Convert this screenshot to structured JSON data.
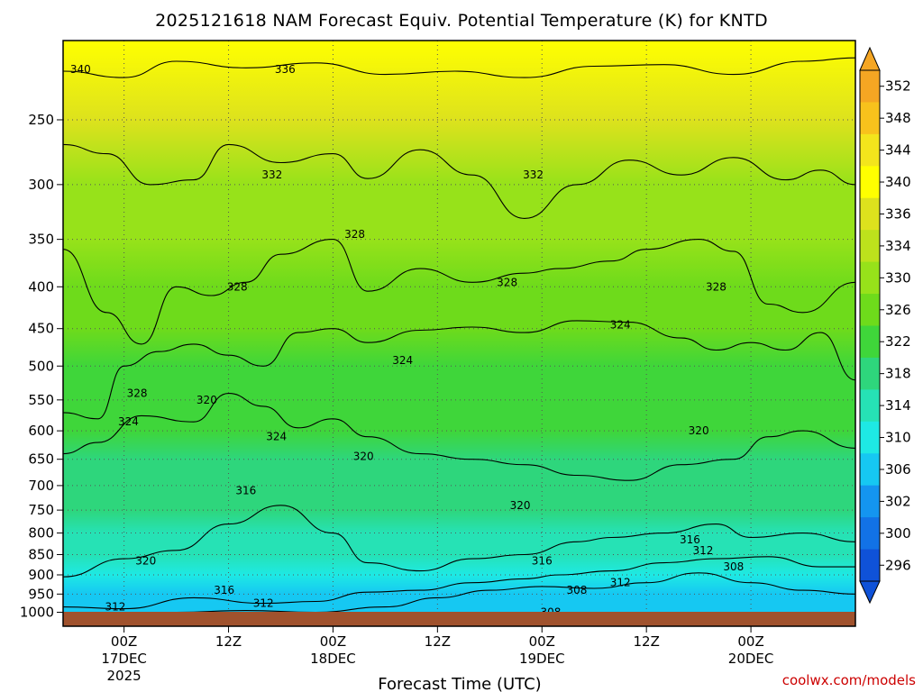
{
  "title": "2025121618 NAM Forecast Equiv. Potential Temperature (K) for KNTD",
  "credit": "coolwx.com/models",
  "colors": {
    "ground": "#a0522d",
    "credit": "#cc0000",
    "grid": "#555555"
  },
  "chart_data": {
    "type": "heatmap",
    "title": "2025121618 NAM Forecast Equiv. Potential Temperature (K) for KNTD",
    "xlabel": "Forecast Time (UTC)",
    "ylabel": "",
    "xlim_hours": [
      -7,
      84
    ],
    "ylim_hpa": [
      200,
      1040
    ],
    "y_scale": "log-pressure (inverted)",
    "grid": true,
    "x_ticks": [
      {
        "hour": 0,
        "time": "00Z",
        "date": "17DEC",
        "year": "2025"
      },
      {
        "hour": 12,
        "time": "12Z",
        "date": "",
        "year": ""
      },
      {
        "hour": 24,
        "time": "00Z",
        "date": "18DEC",
        "year": ""
      },
      {
        "hour": 36,
        "time": "12Z",
        "date": "",
        "year": ""
      },
      {
        "hour": 48,
        "time": "00Z",
        "date": "19DEC",
        "year": ""
      },
      {
        "hour": 60,
        "time": "12Z",
        "date": "",
        "year": ""
      },
      {
        "hour": 72,
        "time": "00Z",
        "date": "20DEC",
        "year": ""
      }
    ],
    "y_ticks": [
      250,
      300,
      350,
      400,
      450,
      500,
      550,
      600,
      650,
      700,
      750,
      800,
      850,
      900,
      950,
      1000
    ],
    "colorbar": {
      "units": "K",
      "labels": [
        352,
        348,
        344,
        340,
        336,
        334,
        330,
        326,
        322,
        318,
        314,
        310,
        306,
        302,
        300,
        296
      ],
      "colors": [
        "#f5a623",
        "#f8c21c",
        "#f3e51c",
        "#ffff00",
        "#dde21d",
        "#bde21c",
        "#97e21a",
        "#6edb1b",
        "#3fd63a",
        "#2ed67c",
        "#26e2b5",
        "#1ee9e4",
        "#16c8f2",
        "#1495f0",
        "#1272e6",
        "#0f52d8"
      ]
    },
    "field_stops": [
      {
        "pressure": 200,
        "value": 342
      },
      {
        "pressure": 250,
        "value": 336
      },
      {
        "pressure": 300,
        "value": 333
      },
      {
        "pressure": 350,
        "value": 330
      },
      {
        "pressure": 400,
        "value": 328
      },
      {
        "pressure": 450,
        "value": 326
      },
      {
        "pressure": 500,
        "value": 324
      },
      {
        "pressure": 550,
        "value": 323
      },
      {
        "pressure": 600,
        "value": 322
      },
      {
        "pressure": 650,
        "value": 321
      },
      {
        "pressure": 700,
        "value": 319
      },
      {
        "pressure": 750,
        "value": 318
      },
      {
        "pressure": 800,
        "value": 317
      },
      {
        "pressure": 850,
        "value": 315
      },
      {
        "pressure": 900,
        "value": 312
      },
      {
        "pressure": 950,
        "value": 309
      },
      {
        "pressure": 1000,
        "value": 306
      }
    ],
    "contours": [
      {
        "level": 336,
        "points": [
          [
            -7,
            218
          ],
          [
            0,
            222
          ],
          [
            6,
            212
          ],
          [
            14,
            216
          ],
          [
            22,
            213
          ],
          [
            30,
            220
          ],
          [
            38,
            218
          ],
          [
            46,
            222
          ],
          [
            54,
            215
          ],
          [
            62,
            214
          ],
          [
            70,
            220
          ],
          [
            78,
            212
          ],
          [
            84,
            210
          ]
        ]
      },
      {
        "level": 332,
        "points": [
          [
            -7,
            268
          ],
          [
            -2,
            275
          ],
          [
            3,
            300
          ],
          [
            8,
            296
          ],
          [
            12,
            268
          ],
          [
            18,
            282
          ],
          [
            24,
            275
          ],
          [
            28,
            295
          ],
          [
            34,
            272
          ],
          [
            40,
            292
          ],
          [
            46,
            330
          ],
          [
            52,
            300
          ],
          [
            58,
            280
          ],
          [
            64,
            292
          ],
          [
            70,
            278
          ],
          [
            76,
            296
          ],
          [
            80,
            288
          ],
          [
            84,
            300
          ]
        ]
      },
      {
        "level": 328,
        "points": [
          [
            -7,
            360
          ],
          [
            -2,
            430
          ],
          [
            2,
            470
          ],
          [
            6,
            400
          ],
          [
            10,
            410
          ],
          [
            14,
            395
          ],
          [
            18,
            365
          ],
          [
            24,
            350
          ],
          [
            28,
            405
          ],
          [
            34,
            380
          ],
          [
            40,
            395
          ],
          [
            46,
            385
          ],
          [
            50,
            380
          ],
          [
            56,
            372
          ],
          [
            60,
            360
          ],
          [
            66,
            350
          ],
          [
            70,
            362
          ],
          [
            74,
            420
          ],
          [
            78,
            430
          ],
          [
            84,
            395
          ]
        ]
      },
      {
        "level": 324,
        "points": [
          [
            -7,
            570
          ],
          [
            -3,
            580
          ],
          [
            0,
            500
          ],
          [
            4,
            480
          ],
          [
            8,
            470
          ],
          [
            12,
            485
          ],
          [
            16,
            500
          ],
          [
            20,
            455
          ],
          [
            24,
            450
          ],
          [
            28,
            468
          ],
          [
            34,
            452
          ],
          [
            40,
            448
          ],
          [
            46,
            455
          ],
          [
            52,
            440
          ],
          [
            58,
            442
          ],
          [
            64,
            462
          ],
          [
            68,
            478
          ],
          [
            72,
            468
          ],
          [
            76,
            478
          ],
          [
            80,
            455
          ],
          [
            84,
            520
          ]
        ]
      },
      {
        "level": 320,
        "points": [
          [
            -7,
            640
          ],
          [
            -3,
            620
          ],
          [
            2,
            575
          ],
          [
            8,
            585
          ],
          [
            12,
            540
          ],
          [
            16,
            560
          ],
          [
            20,
            595
          ],
          [
            24,
            580
          ],
          [
            28,
            610
          ],
          [
            34,
            640
          ],
          [
            40,
            650
          ],
          [
            46,
            660
          ],
          [
            52,
            680
          ],
          [
            58,
            690
          ],
          [
            64,
            660
          ],
          [
            70,
            650
          ],
          [
            74,
            610
          ],
          [
            78,
            600
          ],
          [
            84,
            630
          ]
        ]
      },
      {
        "level": 316,
        "points": [
          [
            -7,
            905
          ],
          [
            0,
            860
          ],
          [
            6,
            840
          ],
          [
            12,
            780
          ],
          [
            18,
            740
          ],
          [
            24,
            800
          ],
          [
            28,
            870
          ],
          [
            34,
            890
          ],
          [
            40,
            860
          ],
          [
            46,
            850
          ],
          [
            52,
            820
          ],
          [
            56,
            810
          ],
          [
            62,
            800
          ],
          [
            68,
            780
          ],
          [
            72,
            810
          ],
          [
            78,
            800
          ],
          [
            84,
            820
          ]
        ]
      },
      {
        "level": 312,
        "points": [
          [
            -7,
            985
          ],
          [
            0,
            990
          ],
          [
            8,
            960
          ],
          [
            16,
            975
          ],
          [
            22,
            970
          ],
          [
            28,
            945
          ],
          [
            34,
            940
          ],
          [
            40,
            920
          ],
          [
            46,
            910
          ],
          [
            50,
            900
          ],
          [
            56,
            890
          ],
          [
            62,
            870
          ],
          [
            68,
            860
          ],
          [
            74,
            855
          ],
          [
            80,
            880
          ],
          [
            84,
            880
          ]
        ]
      },
      {
        "level": 308,
        "points": [
          [
            -7,
            1002
          ],
          [
            6,
            1000
          ],
          [
            14,
            995
          ],
          [
            22,
            1000
          ],
          [
            30,
            985
          ],
          [
            36,
            960
          ],
          [
            42,
            940
          ],
          [
            48,
            930
          ],
          [
            54,
            935
          ],
          [
            60,
            920
          ],
          [
            66,
            895
          ],
          [
            72,
            920
          ],
          [
            78,
            940
          ],
          [
            84,
            950
          ]
        ]
      }
    ],
    "contour_labels": [
      {
        "text": "340",
        "hour": -5,
        "pressure": 217
      },
      {
        "text": "336",
        "hour": 18.5,
        "pressure": 217
      },
      {
        "text": "332",
        "hour": 17,
        "pressure": 292
      },
      {
        "text": "332",
        "hour": 47,
        "pressure": 292
      },
      {
        "text": "328",
        "hour": 13,
        "pressure": 400
      },
      {
        "text": "328",
        "hour": 26.5,
        "pressure": 345
      },
      {
        "text": "328",
        "hour": 44,
        "pressure": 395
      },
      {
        "text": "328",
        "hour": 68,
        "pressure": 400
      },
      {
        "text": "328",
        "hour": 1.5,
        "pressure": 540
      },
      {
        "text": "324",
        "hour": 0.5,
        "pressure": 585
      },
      {
        "text": "324",
        "hour": 57,
        "pressure": 445
      },
      {
        "text": "324",
        "hour": 32,
        "pressure": 492
      },
      {
        "text": "324",
        "hour": 17.5,
        "pressure": 610
      },
      {
        "text": "320",
        "hour": 9.5,
        "pressure": 550
      },
      {
        "text": "320",
        "hour": 27.5,
        "pressure": 645
      },
      {
        "text": "320",
        "hour": 45.5,
        "pressure": 740
      },
      {
        "text": "320",
        "hour": 66,
        "pressure": 600
      },
      {
        "text": "320",
        "hour": 2.5,
        "pressure": 865
      },
      {
        "text": "316",
        "hour": 14,
        "pressure": 710
      },
      {
        "text": "316",
        "hour": 48,
        "pressure": 865
      },
      {
        "text": "316",
        "hour": 65,
        "pressure": 815
      },
      {
        "text": "316",
        "hour": 11.5,
        "pressure": 940
      },
      {
        "text": "312",
        "hour": 66.5,
        "pressure": 840
      },
      {
        "text": "312",
        "hour": 57,
        "pressure": 920
      },
      {
        "text": "312",
        "hour": -1,
        "pressure": 985
      },
      {
        "text": "312",
        "hour": 16,
        "pressure": 975
      },
      {
        "text": "308",
        "hour": 70,
        "pressure": 880
      },
      {
        "text": "308",
        "hour": 52,
        "pressure": 940
      },
      {
        "text": "308",
        "hour": 49,
        "pressure": 1000
      }
    ]
  }
}
